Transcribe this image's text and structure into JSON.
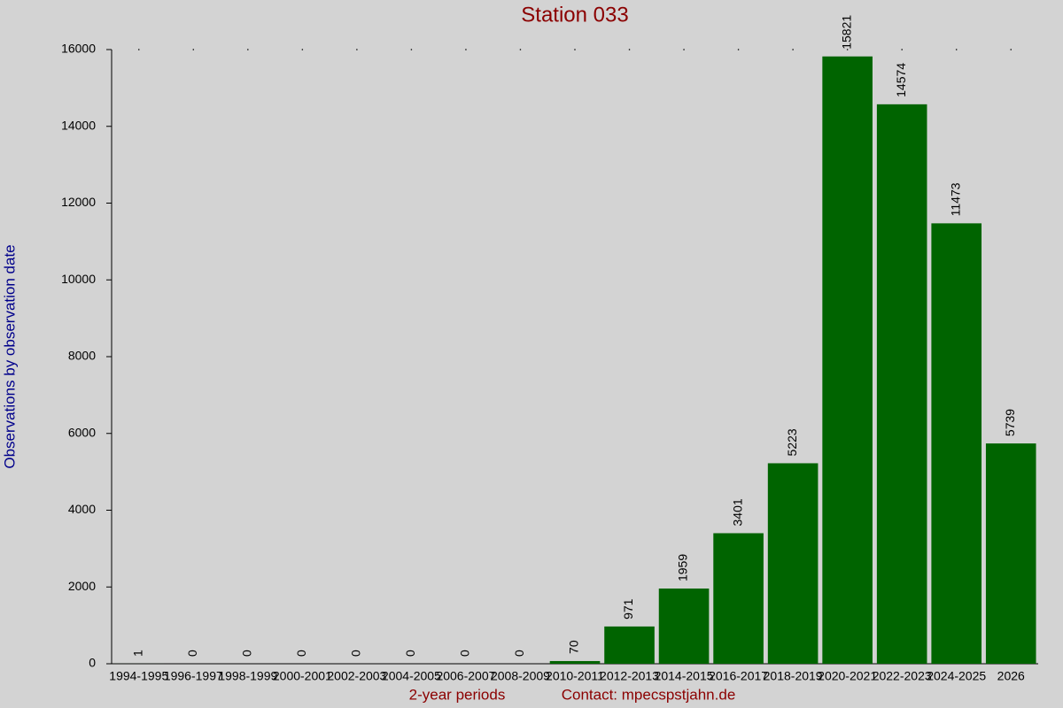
{
  "chart_data": {
    "type": "bar",
    "title": "Station 033",
    "x_label": "2-year periods",
    "y_label": "Observations by observation date",
    "footer": "Contact: mpecspstjahn.de",
    "categories": [
      "1994-1995",
      "1996-1997",
      "1998-1999",
      "2000-2001",
      "2002-2003",
      "2004-2005",
      "2006-2007",
      "2008-2009",
      "2010-2011",
      "2012-2013",
      "2014-2015",
      "2016-2017",
      "2018-2019",
      "2020-2021",
      "2022-2023",
      "2024-2025",
      "2026"
    ],
    "values": [
      1,
      0,
      0,
      0,
      0,
      0,
      0,
      0,
      70,
      971,
      1959,
      3401,
      5223,
      15821,
      14574,
      11473,
      5739
    ],
    "color": "#006400",
    "ylim": [
      0,
      16000
    ],
    "yticks": [
      0,
      2000,
      4000,
      6000,
      8000,
      10000,
      12000,
      14000,
      16000
    ],
    "grid": false
  }
}
